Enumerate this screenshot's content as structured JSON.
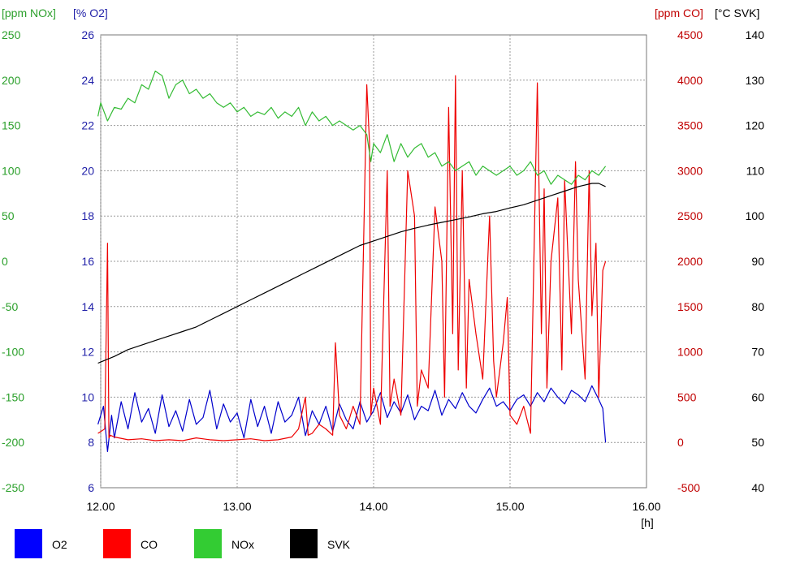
{
  "chart_data": {
    "type": "line",
    "grid": true,
    "legend_placement": "bottom-left",
    "x_axis": {
      "min": 12.0,
      "max": 16.0,
      "ticks": [
        12,
        13,
        14,
        15,
        16
      ],
      "tick_labels": [
        "12.00",
        "13.00",
        "14.00",
        "15.00",
        "16.00"
      ],
      "unit_label": "[h]"
    },
    "axes": [
      {
        "id": "nox",
        "label": "[ppm NOx]",
        "color": "#2ca02c",
        "side": "left-outer",
        "min": -250,
        "max": 250,
        "ticks": [
          -250,
          -200,
          -150,
          -100,
          -50,
          0,
          50,
          100,
          150,
          200,
          250
        ]
      },
      {
        "id": "o2",
        "label": "[% O2]",
        "color": "#1f1fa8",
        "side": "left-inner",
        "min": 6,
        "max": 26,
        "ticks": [
          6,
          8,
          10,
          12,
          14,
          16,
          18,
          20,
          22,
          24,
          26
        ]
      },
      {
        "id": "co",
        "label": "[ppm CO]",
        "color": "#c00000",
        "side": "right-inner",
        "min": -500,
        "max": 4500,
        "ticks": [
          -500,
          0,
          500,
          1000,
          1500,
          2000,
          2500,
          3000,
          3500,
          4000,
          4500
        ]
      },
      {
        "id": "svk",
        "label": "[°C SVK]",
        "color": "#000000",
        "side": "right-outer",
        "min": 40,
        "max": 140,
        "ticks": [
          40,
          50,
          60,
          70,
          80,
          90,
          100,
          110,
          120,
          130,
          140
        ]
      }
    ],
    "series": [
      {
        "name": "O2",
        "axis": "o2",
        "color": "#0000cc",
        "x": [
          11.98,
          12.02,
          12.05,
          12.08,
          12.1,
          12.15,
          12.2,
          12.25,
          12.3,
          12.35,
          12.4,
          12.45,
          12.5,
          12.55,
          12.6,
          12.65,
          12.7,
          12.75,
          12.8,
          12.85,
          12.9,
          12.95,
          13.0,
          13.05,
          13.1,
          13.15,
          13.2,
          13.25,
          13.3,
          13.35,
          13.4,
          13.45,
          13.5,
          13.55,
          13.6,
          13.65,
          13.7,
          13.75,
          13.8,
          13.85,
          13.9,
          13.95,
          14.0,
          14.05,
          14.1,
          14.15,
          14.2,
          14.25,
          14.3,
          14.35,
          14.4,
          14.45,
          14.5,
          14.55,
          14.6,
          14.65,
          14.7,
          14.75,
          14.8,
          14.85,
          14.9,
          14.95,
          15.0,
          15.05,
          15.1,
          15.15,
          15.2,
          15.25,
          15.3,
          15.35,
          15.4,
          15.45,
          15.5,
          15.55,
          15.6,
          15.65,
          15.68,
          15.7
        ],
        "y": [
          8.8,
          9.6,
          7.6,
          9.2,
          8.2,
          9.8,
          8.6,
          10.2,
          8.9,
          9.5,
          8.4,
          10.1,
          8.7,
          9.4,
          8.5,
          9.9,
          8.8,
          9.1,
          10.3,
          8.6,
          9.7,
          8.9,
          9.3,
          8.2,
          9.9,
          8.7,
          9.6,
          8.4,
          9.8,
          8.9,
          9.2,
          10.0,
          8.3,
          9.4,
          8.8,
          9.6,
          8.5,
          9.7,
          9.0,
          8.6,
          9.8,
          8.9,
          9.4,
          10.2,
          9.1,
          9.8,
          9.3,
          10.1,
          9.0,
          9.6,
          9.4,
          10.3,
          9.2,
          9.9,
          9.5,
          10.2,
          9.6,
          9.3,
          9.9,
          10.4,
          9.6,
          9.8,
          9.4,
          9.9,
          10.1,
          9.6,
          10.2,
          9.8,
          10.4,
          10.0,
          9.7,
          10.3,
          10.1,
          9.8,
          10.5,
          9.9,
          9.5,
          8.0
        ]
      },
      {
        "name": "CO",
        "axis": "co",
        "color": "#ee0000",
        "x": [
          11.98,
          12.03,
          12.05,
          12.06,
          12.07,
          12.1,
          12.2,
          12.3,
          12.4,
          12.5,
          12.6,
          12.7,
          12.8,
          12.9,
          13.0,
          13.1,
          13.2,
          13.3,
          13.4,
          13.45,
          13.5,
          13.52,
          13.55,
          13.6,
          13.65,
          13.7,
          13.72,
          13.75,
          13.8,
          13.85,
          13.9,
          13.95,
          13.97,
          13.98,
          14.0,
          14.05,
          14.1,
          14.12,
          14.15,
          14.2,
          14.25,
          14.3,
          14.32,
          14.35,
          14.4,
          14.45,
          14.5,
          14.52,
          14.55,
          14.58,
          14.6,
          14.62,
          14.65,
          14.68,
          14.7,
          14.75,
          14.8,
          14.85,
          14.88,
          14.9,
          14.95,
          14.98,
          15.0,
          15.05,
          15.1,
          15.15,
          15.2,
          15.23,
          15.25,
          15.27,
          15.3,
          15.35,
          15.38,
          15.4,
          15.45,
          15.48,
          15.5,
          15.55,
          15.58,
          15.6,
          15.63,
          15.65,
          15.68,
          15.7
        ],
        "y": [
          100,
          150,
          2200,
          50,
          80,
          60,
          30,
          40,
          20,
          30,
          20,
          50,
          30,
          20,
          30,
          40,
          20,
          30,
          60,
          150,
          500,
          80,
          100,
          200,
          150,
          80,
          1100,
          300,
          150,
          400,
          200,
          3950,
          3300,
          300,
          600,
          200,
          3000,
          400,
          700,
          300,
          3000,
          2500,
          400,
          800,
          600,
          2600,
          2000,
          500,
          3700,
          1200,
          4050,
          800,
          3000,
          600,
          1800,
          1200,
          700,
          2500,
          900,
          500,
          1100,
          1600,
          300,
          200,
          400,
          100,
          3970,
          1200,
          2800,
          600,
          2000,
          2700,
          800,
          2900,
          1200,
          3100,
          1800,
          700,
          3000,
          1400,
          2200,
          500,
          1900,
          2000
        ]
      },
      {
        "name": "NOx",
        "axis": "nox",
        "color": "#33bb33",
        "x": [
          11.98,
          12.0,
          12.05,
          12.1,
          12.15,
          12.2,
          12.25,
          12.3,
          12.35,
          12.4,
          12.45,
          12.5,
          12.55,
          12.6,
          12.65,
          12.7,
          12.75,
          12.8,
          12.85,
          12.9,
          12.95,
          13.0,
          13.05,
          13.1,
          13.15,
          13.2,
          13.25,
          13.3,
          13.35,
          13.4,
          13.45,
          13.5,
          13.55,
          13.6,
          13.65,
          13.7,
          13.75,
          13.8,
          13.85,
          13.9,
          13.95,
          13.98,
          14.0,
          14.05,
          14.1,
          14.15,
          14.2,
          14.25,
          14.3,
          14.35,
          14.4,
          14.45,
          14.5,
          14.55,
          14.6,
          14.65,
          14.7,
          14.75,
          14.8,
          14.85,
          14.9,
          14.95,
          15.0,
          15.05,
          15.1,
          15.15,
          15.2,
          15.25,
          15.3,
          15.35,
          15.4,
          15.45,
          15.5,
          15.55,
          15.6,
          15.65,
          15.7
        ],
        "y": [
          160,
          175,
          155,
          170,
          168,
          180,
          175,
          195,
          190,
          210,
          205,
          180,
          195,
          200,
          185,
          190,
          180,
          185,
          175,
          170,
          175,
          165,
          170,
          160,
          165,
          162,
          170,
          158,
          165,
          160,
          170,
          150,
          165,
          155,
          160,
          150,
          155,
          150,
          145,
          150,
          140,
          110,
          130,
          120,
          140,
          110,
          130,
          115,
          125,
          130,
          115,
          120,
          105,
          110,
          100,
          105,
          110,
          95,
          105,
          100,
          95,
          100,
          105,
          95,
          100,
          110,
          95,
          100,
          85,
          95,
          90,
          85,
          95,
          90,
          100,
          95,
          105
        ]
      },
      {
        "name": "SVK",
        "axis": "svk",
        "color": "#000000",
        "x": [
          11.98,
          12.1,
          12.2,
          12.3,
          12.4,
          12.5,
          12.6,
          12.7,
          12.8,
          12.9,
          13.0,
          13.1,
          13.2,
          13.3,
          13.4,
          13.5,
          13.6,
          13.7,
          13.8,
          13.9,
          14.0,
          14.1,
          14.2,
          14.3,
          14.4,
          14.5,
          14.6,
          14.7,
          14.8,
          14.9,
          15.0,
          15.1,
          15.2,
          15.3,
          15.4,
          15.5,
          15.6,
          15.65,
          15.7
        ],
        "y": [
          67.5,
          69,
          70.5,
          71.5,
          72.5,
          73.5,
          74.5,
          75.5,
          77,
          78.5,
          80,
          81.5,
          83,
          84.5,
          86,
          87.5,
          89,
          90.5,
          92,
          93.5,
          94.5,
          95.5,
          96.5,
          97.3,
          98,
          98.6,
          99.2,
          99.8,
          100.5,
          101,
          101.8,
          102.5,
          103.5,
          104.5,
          105.5,
          106.5,
          107.2,
          107.2,
          106.5
        ]
      }
    ],
    "legend": [
      {
        "name": "O2",
        "color": "#0000ff"
      },
      {
        "name": "CO",
        "color": "#ff0000"
      },
      {
        "name": "NOx",
        "color": "#33cc33"
      },
      {
        "name": "SVK",
        "color": "#000000"
      }
    ]
  }
}
